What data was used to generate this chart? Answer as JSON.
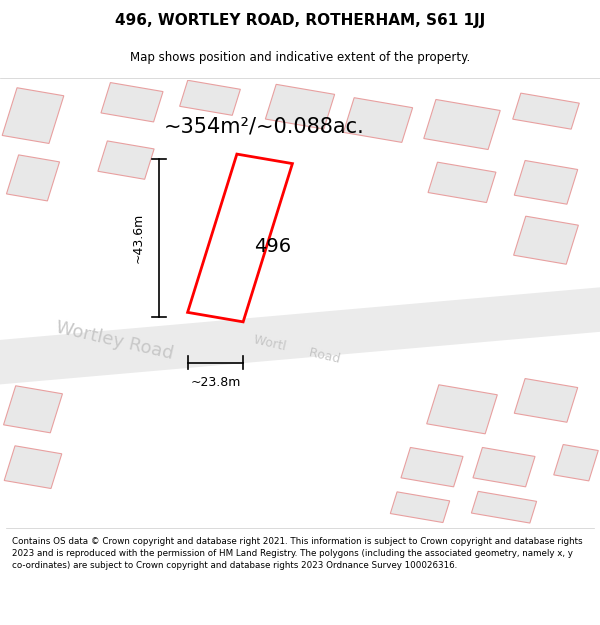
{
  "title": "496, WORTLEY ROAD, ROTHERHAM, S61 1JJ",
  "subtitle": "Map shows position and indicative extent of the property.",
  "area_text": "~354m²/~0.088ac.",
  "label_496": "496",
  "dim_height": "~43.6m",
  "dim_width": "~23.8m",
  "road_label1": "Wortley Road",
  "road_label2": "Wortl",
  "road_label3": "Road",
  "footer": "Contains OS data © Crown copyright and database right 2021. This information is subject to Crown copyright and database rights 2023 and is reproduced with the permission of HM Land Registry. The polygons (including the associated geometry, namely x, y co-ordinates) are subject to Crown copyright and database rights 2023 Ordnance Survey 100026316.",
  "bg_color": "#ffffff",
  "building_fill": "#e8e8e8",
  "building_edge": "#e8a0a0",
  "road_fill": "#e8e8e8",
  "highlight_fill": "#ffffff",
  "highlight_edge": "#ff0000",
  "title_color": "#000000",
  "footer_color": "#000000",
  "road_label_color": "#c8c8c8",
  "dim_color": "#000000"
}
